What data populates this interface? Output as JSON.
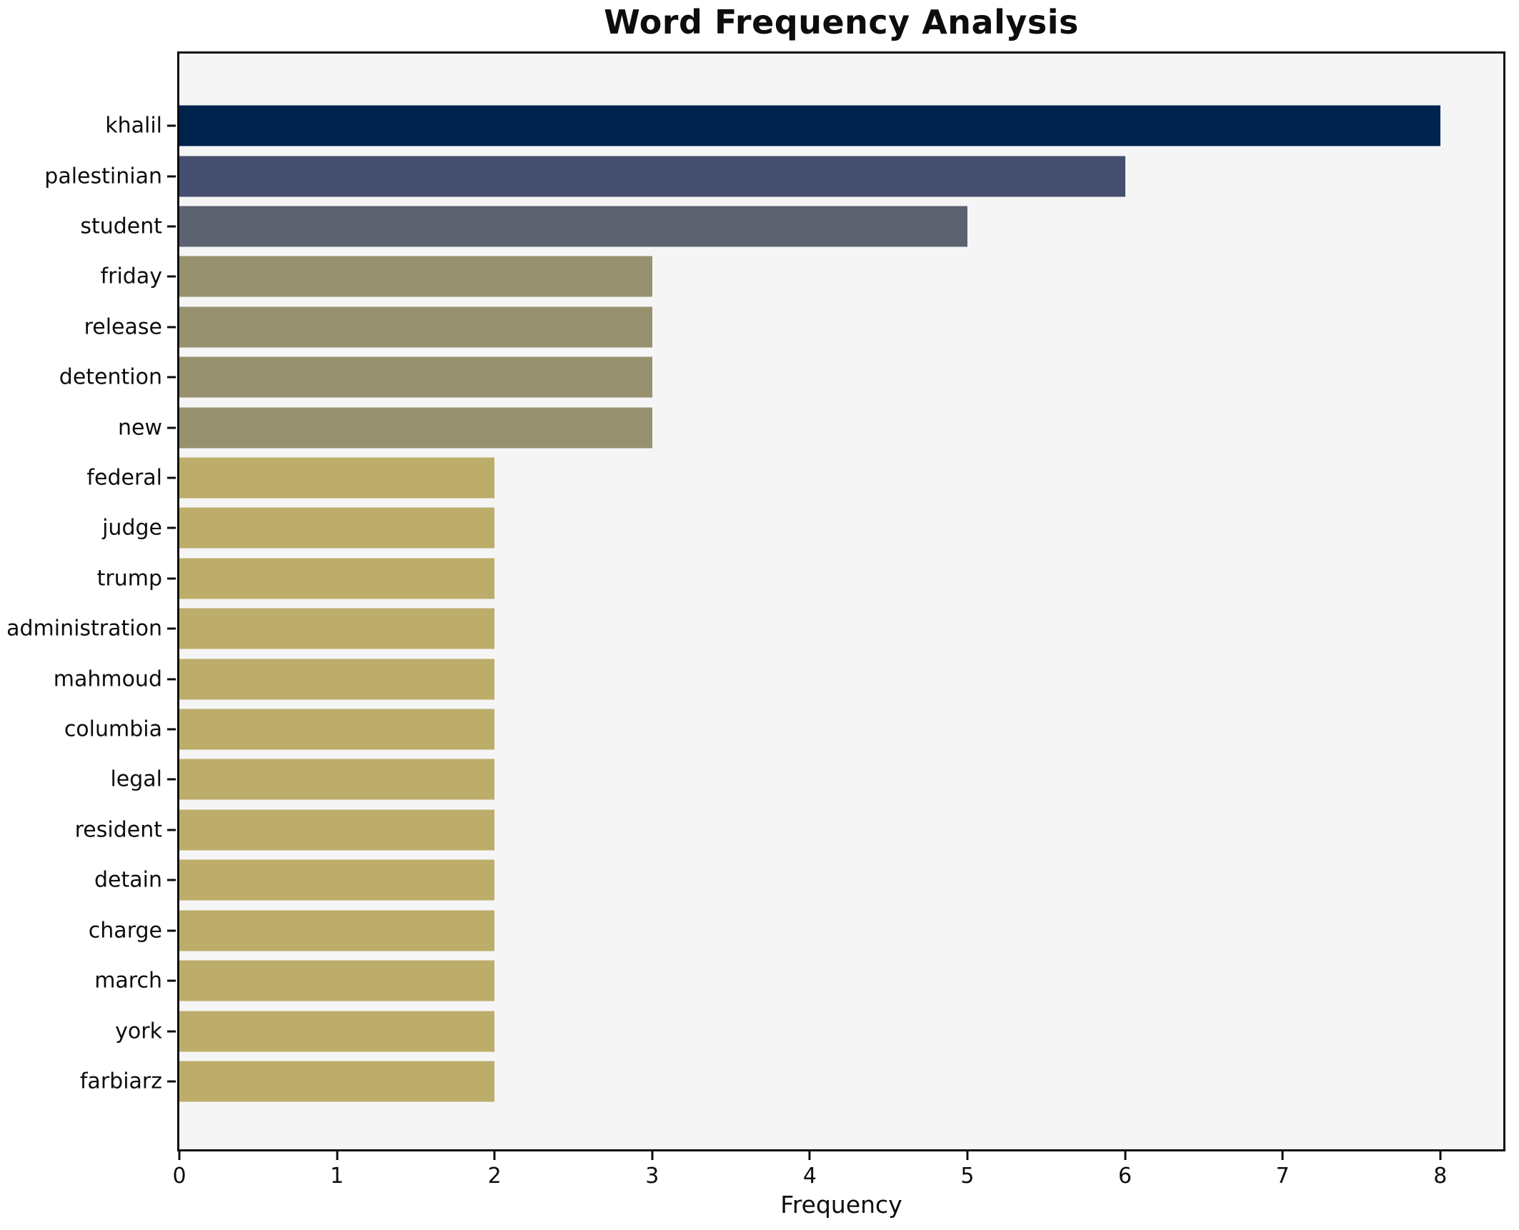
{
  "chart_data": {
    "type": "bar",
    "orientation": "horizontal",
    "title": "Word Frequency Analysis",
    "xlabel": "Frequency",
    "ylabel": "",
    "categories": [
      "khalil",
      "palestinian",
      "student",
      "friday",
      "release",
      "detention",
      "new",
      "federal",
      "judge",
      "trump",
      "administration",
      "mahmoud",
      "columbia",
      "legal",
      "resident",
      "detain",
      "charge",
      "march",
      "york",
      "farbiarz"
    ],
    "values": [
      8,
      6,
      5,
      3,
      3,
      3,
      3,
      2,
      2,
      2,
      2,
      2,
      2,
      2,
      2,
      2,
      2,
      2,
      2,
      2
    ],
    "bar_colors": [
      "#00234e",
      "#454e6e",
      "#5d6270",
      "#989170",
      "#989170",
      "#989170",
      "#989170",
      "#bcad6a",
      "#bcad6a",
      "#bcad6a",
      "#bcad6a",
      "#bcad6a",
      "#bcad6a",
      "#bcad6a",
      "#bcad6a",
      "#bcad6a",
      "#bcad6a",
      "#bcad6a",
      "#bcad6a",
      "#bcad6a"
    ],
    "xlim": [
      0,
      8.4
    ],
    "xticks": [
      0,
      1,
      2,
      3,
      4,
      5,
      6,
      7,
      8
    ],
    "grid": false,
    "legend_position": "none",
    "plot_background": "#f5f5f6",
    "figure_background": "#ffffff",
    "spine_color": "#0d0d0d",
    "title_color": "#0d0d0d",
    "tick_color": "#0d0d0d"
  }
}
